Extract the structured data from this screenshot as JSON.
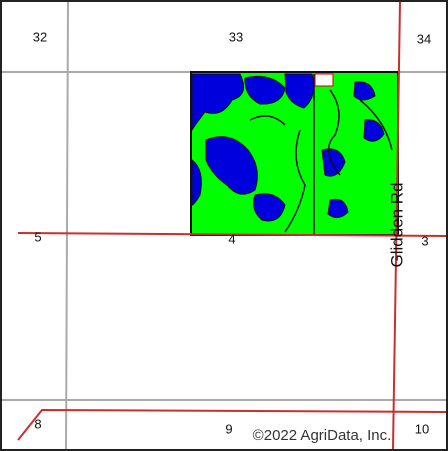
{
  "sections": [
    "32",
    "33",
    "34",
    "5",
    "4",
    "3",
    "8",
    "9",
    "10"
  ],
  "road": "Glidden Rd",
  "copyright": "©2022 AgriData, Inc."
}
